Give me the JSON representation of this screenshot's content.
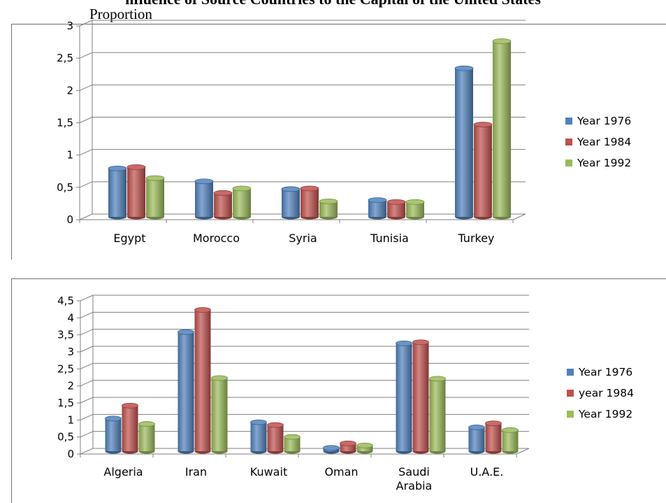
{
  "caption": {
    "top_line": "nfluence of Source Countries to the Capital of the United States",
    "sub_label": "Proportion"
  },
  "chart_data": [
    {
      "type": "bar",
      "title": "",
      "xlabel": "",
      "ylabel": "",
      "ylim": [
        0,
        3
      ],
      "yticks": [
        "0",
        "0,5",
        "1",
        "1,5",
        "2",
        "2,5",
        "3"
      ],
      "grid": true,
      "legend_position": "right",
      "categories": [
        "Egypt",
        "Morocco",
        "Syria",
        "Tunisia",
        "Turkey"
      ],
      "series": [
        {
          "name": "Year 1976",
          "color": "#4f81bd",
          "values": [
            0.75,
            0.55,
            0.43,
            0.26,
            2.3
          ]
        },
        {
          "name": "Year 1984",
          "color": "#c0504d",
          "values": [
            0.77,
            0.37,
            0.44,
            0.23,
            1.43
          ]
        },
        {
          "name": "Year 1992",
          "color": "#9bbb59",
          "values": [
            0.6,
            0.44,
            0.24,
            0.23,
            2.72
          ]
        }
      ]
    },
    {
      "type": "bar",
      "title": "",
      "xlabel": "",
      "ylabel": "",
      "ylim": [
        0,
        4.5
      ],
      "yticks": [
        "0",
        "0,5",
        "1",
        "1,5",
        "2",
        "2,5",
        "3",
        "3,5",
        "4",
        "4,5"
      ],
      "grid": true,
      "legend_position": "right",
      "categories": [
        "Algeria",
        "Iran",
        "Kuwait",
        "Oman",
        "Saudi Arabia",
        "U.A.E."
      ],
      "series": [
        {
          "name": "Year 1976",
          "color": "#4f81bd",
          "values": [
            0.96,
            3.5,
            0.85,
            0.1,
            3.17,
            0.7
          ]
        },
        {
          "name": "year 1984",
          "color": "#c0504d",
          "values": [
            1.34,
            4.15,
            0.77,
            0.23,
            3.2,
            0.82
          ]
        },
        {
          "name": "Year 1992",
          "color": "#9bbb59",
          "values": [
            0.8,
            2.15,
            0.42,
            0.17,
            2.13,
            0.62
          ]
        }
      ]
    }
  ]
}
